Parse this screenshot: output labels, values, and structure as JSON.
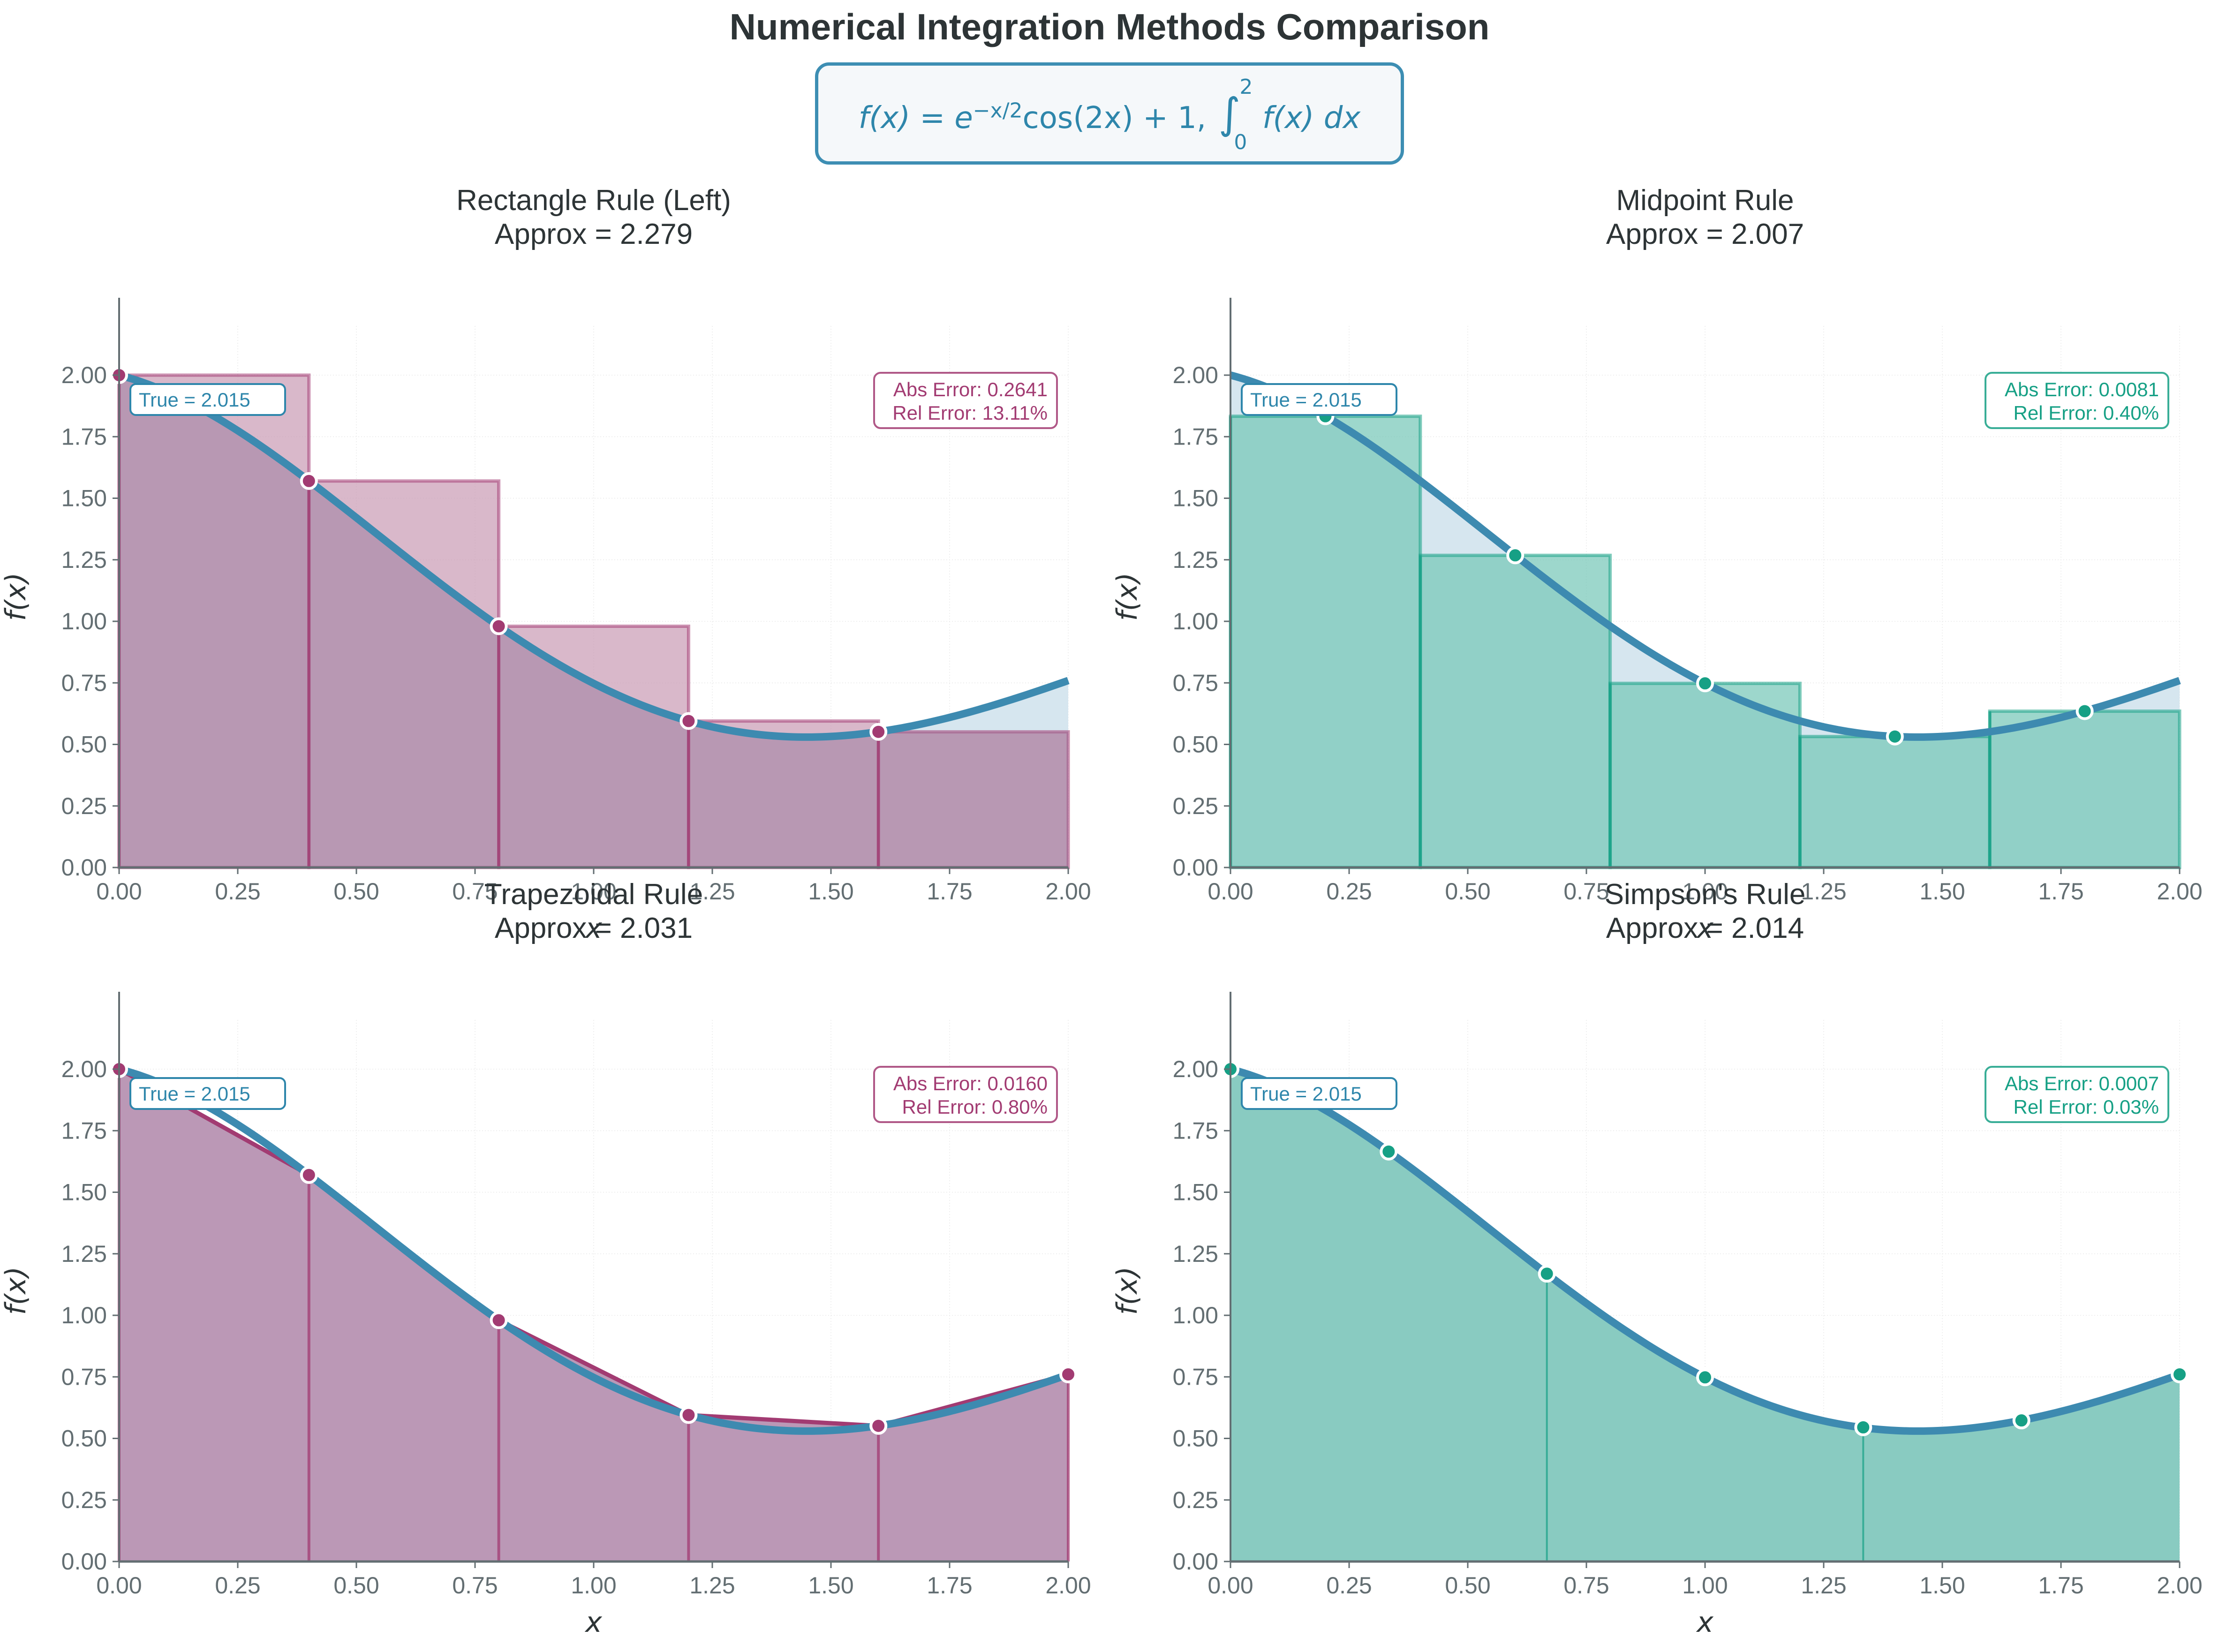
{
  "figure": {
    "title": "Numerical Integration Methods Comparison",
    "formula": {
      "lhs": "f(x) = e",
      "exponent": "−x/2",
      "rhs": "cos(2x) + 1, ",
      "integral_upper": "2",
      "integral_lower": "0",
      "integrand": "f(x) dx"
    }
  },
  "colors": {
    "curve": "#2e86ab",
    "magenta": "#a23b72",
    "magenta_fill": "#c99ab3",
    "teal": "#16a085",
    "teal_fill": "#73c6b6",
    "text": "#2d3436",
    "tick": "#636e72"
  },
  "chart_data": [
    {
      "type": "bar",
      "method": "rectangle-left",
      "title": "Rectangle Rule (Left)",
      "subtitle": "Approx = 2.279",
      "xlabel": "x",
      "ylabel": "f(x)",
      "xlim": [
        0,
        2
      ],
      "ylim": [
        0,
        2.2
      ],
      "xticks": [
        "0.00",
        "0.25",
        "0.50",
        "0.75",
        "1.00",
        "1.25",
        "1.50",
        "1.75",
        "2.00"
      ],
      "yticks": [
        "0.00",
        "0.25",
        "0.50",
        "0.75",
        "1.00",
        "1.25",
        "1.50",
        "1.75",
        "2.00"
      ],
      "grid": true,
      "true_label": "True = 2.015",
      "abs_error": "Abs Error: 0.2641",
      "rel_error": "Rel Error: 13.11%",
      "accent": "magenta",
      "function": "exp(-x/2)*cos(2x)+1",
      "bars": [
        {
          "x0": 0.0,
          "x1": 0.4,
          "height": 2.0
        },
        {
          "x0": 0.4,
          "x1": 0.8,
          "height": 1.57
        },
        {
          "x0": 0.8,
          "x1": 1.2,
          "height": 0.98
        },
        {
          "x0": 1.2,
          "x1": 1.6,
          "height": 0.595
        },
        {
          "x0": 1.6,
          "x1": 2.0,
          "height": 0.551
        }
      ],
      "points": [
        [
          0.0,
          2.0
        ],
        [
          0.4,
          1.57
        ],
        [
          0.8,
          0.98
        ],
        [
          1.2,
          0.595
        ],
        [
          1.6,
          0.551
        ]
      ]
    },
    {
      "type": "bar",
      "method": "midpoint",
      "title": "Midpoint Rule",
      "subtitle": "Approx = 2.007",
      "xlabel": "x",
      "ylabel": "f(x)",
      "xlim": [
        0,
        2
      ],
      "ylim": [
        0,
        2.2
      ],
      "xticks": [
        "0.00",
        "0.25",
        "0.50",
        "0.75",
        "1.00",
        "1.25",
        "1.50",
        "1.75",
        "2.00"
      ],
      "yticks": [
        "0.00",
        "0.25",
        "0.50",
        "0.75",
        "1.00",
        "1.25",
        "1.50",
        "1.75",
        "2.00"
      ],
      "grid": true,
      "true_label": "True = 2.015",
      "abs_error": "Abs Error: 0.0081",
      "rel_error": "Rel Error: 0.40%",
      "accent": "teal",
      "function": "exp(-x/2)*cos(2x)+1",
      "bars": [
        {
          "x0": 0.0,
          "x1": 0.4,
          "height": 1.833
        },
        {
          "x0": 0.4,
          "x1": 0.8,
          "height": 1.268
        },
        {
          "x0": 0.8,
          "x1": 1.2,
          "height": 0.748
        },
        {
          "x0": 1.2,
          "x1": 1.6,
          "height": 0.532
        },
        {
          "x0": 1.6,
          "x1": 2.0,
          "height": 0.635
        }
      ],
      "points": [
        [
          0.2,
          1.833
        ],
        [
          0.6,
          1.268
        ],
        [
          1.0,
          0.748
        ],
        [
          1.4,
          0.532
        ],
        [
          1.8,
          0.635
        ]
      ]
    },
    {
      "type": "area",
      "method": "trapezoidal",
      "title": "Trapezoidal Rule",
      "subtitle": "Approx = 2.031",
      "xlabel": "x",
      "ylabel": "f(x)",
      "xlim": [
        0,
        2
      ],
      "ylim": [
        0,
        2.2
      ],
      "xticks": [
        "0.00",
        "0.25",
        "0.50",
        "0.75",
        "1.00",
        "1.25",
        "1.50",
        "1.75",
        "2.00"
      ],
      "yticks": [
        "0.00",
        "0.25",
        "0.50",
        "0.75",
        "1.00",
        "1.25",
        "1.50",
        "1.75",
        "2.00"
      ],
      "grid": true,
      "true_label": "True = 2.015",
      "abs_error": "Abs Error: 0.0160",
      "rel_error": "Rel Error: 0.80%",
      "accent": "magenta",
      "function": "exp(-x/2)*cos(2x)+1",
      "points": [
        [
          0.0,
          2.0
        ],
        [
          0.4,
          1.57
        ],
        [
          0.8,
          0.98
        ],
        [
          1.2,
          0.595
        ],
        [
          1.6,
          0.551
        ],
        [
          2.0,
          0.76
        ]
      ]
    },
    {
      "type": "area",
      "method": "simpson",
      "title": "Simpson's Rule",
      "subtitle": "Approx = 2.014",
      "xlabel": "x",
      "ylabel": "f(x)",
      "xlim": [
        0,
        2
      ],
      "ylim": [
        0,
        2.2
      ],
      "xticks": [
        "0.00",
        "0.25",
        "0.50",
        "0.75",
        "1.00",
        "1.25",
        "1.50",
        "1.75",
        "2.00"
      ],
      "yticks": [
        "0.00",
        "0.25",
        "0.50",
        "0.75",
        "1.00",
        "1.25",
        "1.50",
        "1.75",
        "2.00"
      ],
      "grid": true,
      "true_label": "True = 2.015",
      "abs_error": "Abs Error: 0.0007",
      "rel_error": "Rel Error: 0.03%",
      "accent": "teal",
      "function": "exp(-x/2)*cos(2x)+1",
      "panel_boundaries": [
        0.6667,
        1.3333
      ],
      "points": [
        [
          0.0,
          2.0
        ],
        [
          0.3333,
          1.665
        ],
        [
          0.6667,
          1.169
        ],
        [
          1.0,
          0.748
        ],
        [
          1.3333,
          0.545
        ],
        [
          1.6667,
          0.573
        ],
        [
          2.0,
          0.76
        ]
      ]
    }
  ]
}
